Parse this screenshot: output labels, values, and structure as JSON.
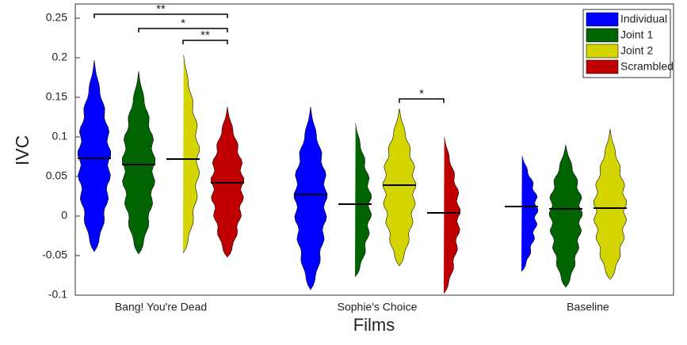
{
  "chart_data": {
    "type": "violin",
    "x_label": "Films",
    "y_label": "IVC",
    "categories": [
      "Bang! You're Dead",
      "Sophie's Choice",
      "Baseline"
    ],
    "series": [
      {
        "name": "Individual",
        "color": "#0000ff",
        "values": [
          0.073,
          0.027,
          0.012
        ],
        "min": [
          -0.045,
          -0.093,
          -0.07
        ],
        "max": [
          0.197,
          0.138,
          0.08
        ]
      },
      {
        "name": "Joint 1",
        "color": "#006400",
        "values": [
          0.065,
          0.015,
          0.009
        ],
        "min": [
          -0.048,
          -0.077,
          -0.09
        ],
        "max": [
          0.183,
          0.122,
          0.09
        ]
      },
      {
        "name": "Joint 2",
        "color": "#d4d400",
        "values": [
          0.072,
          0.039,
          0.01
        ],
        "min": [
          -0.047,
          -0.063,
          -0.08
        ],
        "max": [
          0.21,
          0.136,
          0.11
        ]
      },
      {
        "name": "Scrambled",
        "color": "#c00000",
        "values": [
          0.042,
          0.004,
          null
        ],
        "min": [
          -0.052,
          -0.098,
          null
        ],
        "max": [
          0.138,
          0.105,
          null
        ]
      }
    ],
    "ylim": [
      -0.1,
      0.27
    ],
    "yticks": [
      -0.1,
      -0.05,
      0,
      0.05,
      0.1,
      0.15,
      0.2,
      0.25
    ],
    "legend": "top-right",
    "annotations": [
      {
        "category": "Bang! You're Dead",
        "from": "Individual",
        "to": "Scrambled",
        "y": 0.255,
        "label": "**"
      },
      {
        "category": "Bang! You're Dead",
        "from": "Joint 1",
        "to": "Scrambled",
        "y": 0.237,
        "label": "*"
      },
      {
        "category": "Bang! You're Dead",
        "from": "Joint 2",
        "to": "Scrambled",
        "y": 0.222,
        "label": "**"
      },
      {
        "category": "Sophie's Choice",
        "from": "Joint 2",
        "to": "Scrambled",
        "y": 0.148,
        "label": "*"
      }
    ]
  }
}
